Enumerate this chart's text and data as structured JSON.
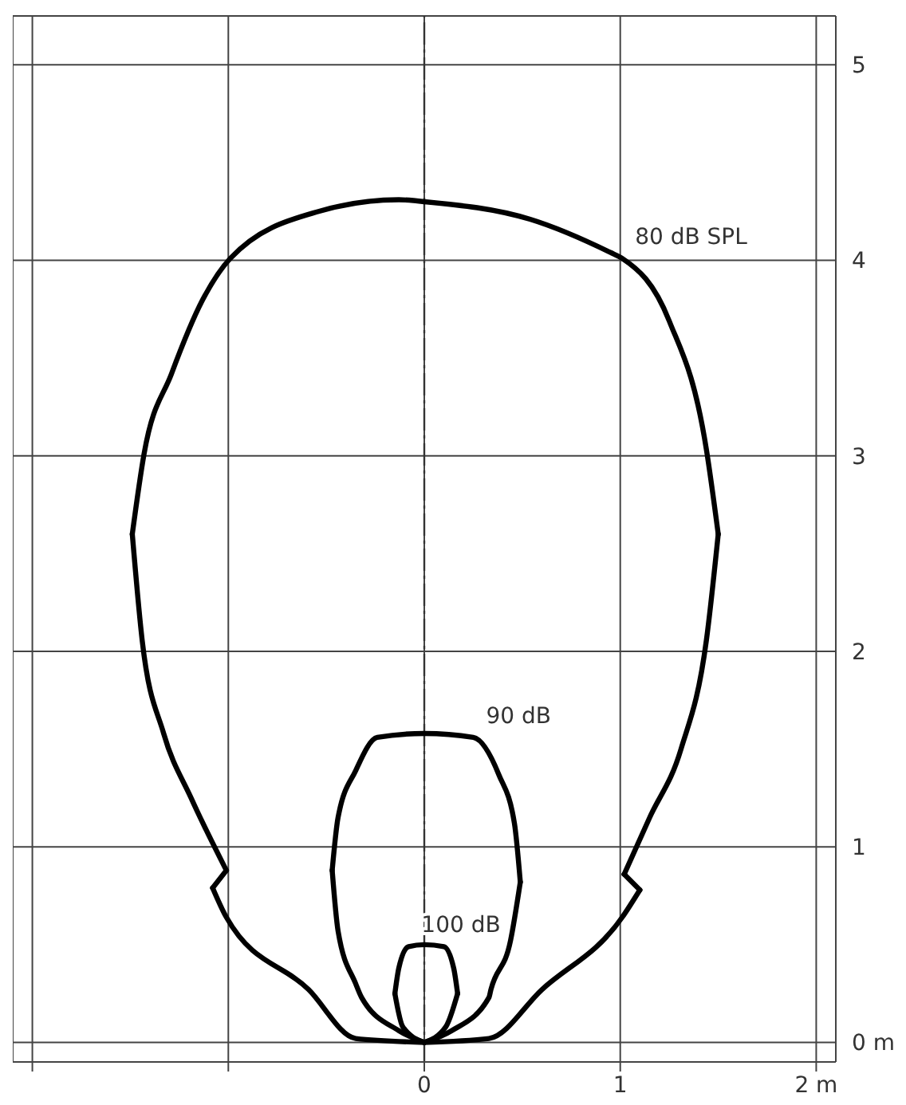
{
  "chart_data": {
    "type": "line",
    "xlim": [
      -2.1,
      2.1
    ],
    "ylim": [
      -0.1,
      5.25
    ],
    "xticks": [
      {
        "value": -2,
        "label": null
      },
      {
        "value": -1,
        "label": null
      },
      0,
      1,
      {
        "value": 2,
        "label": "2 m"
      }
    ],
    "yticks": [
      {
        "value": 0,
        "label": "0 m"
      },
      1,
      2,
      3,
      4,
      5
    ],
    "grid": true,
    "marker": "none",
    "line_style": "solid",
    "ref_lines": [
      {
        "axis": "x",
        "value": 0,
        "color": "#333333",
        "line_style": "dashed"
      }
    ],
    "annotations": [
      {
        "text": "80 dB SPL",
        "x": 1.01,
        "y": 4.01
      },
      {
        "text": "90 dB",
        "x": 0.25,
        "y": 1.56
      },
      {
        "text": "100 dB",
        "x": -0.08,
        "y": 0.49
      }
    ],
    "series": [
      {
        "color": "#000000",
        "x": [
          0,
          -0.35,
          -0.59,
          -1.01,
          -1.08
        ],
        "values": [
          0,
          0.02,
          0.27,
          0.64,
          0.79
        ]
      },
      {
        "color": "#000000",
        "x": [
          -1.08,
          -1.01
        ],
        "values": [
          0.79,
          0.88
        ]
      },
      {
        "color": "#000000",
        "x": [
          -1.01,
          -1.19,
          -1.33,
          -1.44,
          -1.49
        ],
        "values": [
          0.88,
          1.25,
          1.58,
          2.06,
          2.6
        ]
      },
      {
        "color": "#000000",
        "x": [
          -1.49,
          -1.43,
          -1.29,
          -1.13,
          -0.99,
          -0.54,
          -0.13,
          0
        ],
        "values": [
          2.6,
          3.01,
          3.42,
          3.8,
          4.01,
          4.25,
          4.31,
          4.3
        ]
      },
      {
        "color": "#000000",
        "x": [
          0,
          0.54,
          0.95,
          1.01,
          1.25,
          1.44,
          1.5
        ],
        "values": [
          4.3,
          4.21,
          4.04,
          4.01,
          3.69,
          3.03,
          2.6
        ]
      },
      {
        "color": "#000000",
        "x": [
          1.5,
          1.44,
          1.31,
          1.15,
          1.02
        ],
        "values": [
          2.6,
          2.06,
          1.5,
          1.15,
          0.86
        ]
      },
      {
        "color": "#000000",
        "x": [
          1.02,
          1.1
        ],
        "values": [
          0.86,
          0.78
        ]
      },
      {
        "color": "#000000",
        "x": [
          1.1,
          1.01,
          0.6,
          0.33,
          0
        ],
        "values": [
          0.78,
          0.64,
          0.27,
          0.02,
          0
        ]
      },
      {
        "color": "#000000",
        "x": [
          0,
          -0.13,
          -0.32,
          -0.35,
          -0.44,
          -0.47
        ],
        "values": [
          0,
          0.06,
          0.23,
          0.3,
          0.57,
          0.88
        ]
      },
      {
        "color": "#000000",
        "x": [
          -0.47,
          -0.44,
          -0.35,
          -0.24,
          0,
          0.25,
          0.38,
          0.46,
          0.49
        ],
        "values": [
          0.88,
          1.15,
          1.39,
          1.56,
          1.58,
          1.56,
          1.37,
          1.12,
          0.82
        ]
      },
      {
        "color": "#000000",
        "x": [
          0.49,
          0.44,
          0.34,
          0.33,
          0.14,
          0
        ],
        "values": [
          0.82,
          0.52,
          0.27,
          0.23,
          0.06,
          0
        ]
      },
      {
        "color": "#000000",
        "x": [
          0,
          -0.11,
          -0.15
        ],
        "values": [
          0,
          0.08,
          0.25
        ]
      },
      {
        "color": "#000000",
        "x": [
          -0.15,
          -0.13,
          -0.08,
          0,
          0.1,
          0.15,
          0.17
        ],
        "values": [
          0.25,
          0.38,
          0.49,
          0.5,
          0.49,
          0.38,
          0.25
        ]
      },
      {
        "color": "#000000",
        "x": [
          0.17,
          0.11,
          0
        ],
        "values": [
          0.25,
          0.08,
          0
        ]
      }
    ]
  }
}
